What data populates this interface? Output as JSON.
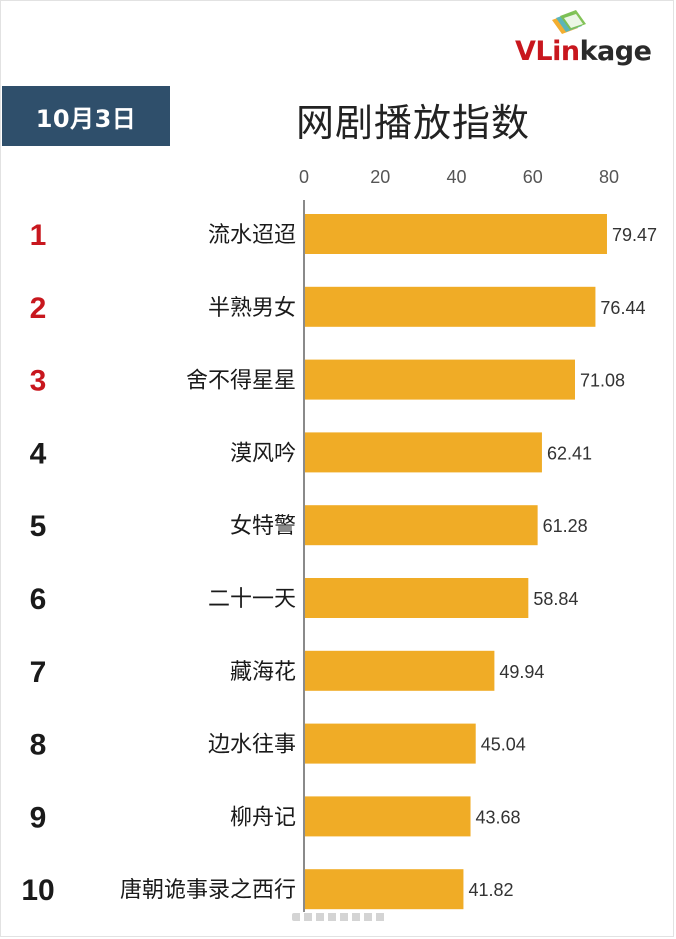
{
  "header": {
    "date": "10月3日",
    "title": "网剧播放指数"
  },
  "brand": {
    "logo_text_v": "VLin",
    "logo_text_rest": "kage",
    "logo_icon": "stacked-cards-icon"
  },
  "colors": {
    "bar": "#f0ac26",
    "date_box": "#2f4f6b",
    "top_rank": "#c8171e",
    "rank": "#1a1a1a",
    "axis": "#8a8a8a"
  },
  "chart_data": {
    "type": "bar",
    "orientation": "horizontal",
    "title": "网剧播放指数",
    "xlim": [
      0,
      80
    ],
    "ticks": [
      0,
      20,
      40,
      60,
      80
    ],
    "ranks": [
      "1",
      "2",
      "3",
      "4",
      "5",
      "6",
      "7",
      "8",
      "9",
      "10"
    ],
    "categories": [
      "流水迢迢",
      "半熟男女",
      "舍不得星星",
      "漠风吟",
      "女特警",
      "二十一天",
      "藏海花",
      "边水往事",
      "柳舟记",
      "唐朝诡事录之西行"
    ],
    "values": [
      79.47,
      76.44,
      71.08,
      62.41,
      61.28,
      58.84,
      49.94,
      45.04,
      43.68,
      41.82
    ],
    "value_labels": [
      "79.47",
      "76.44",
      "71.08",
      "62.41",
      "61.28",
      "58.84",
      "49.94",
      "45.04",
      "43.68",
      "41.82"
    ],
    "grid": false,
    "legend": "none"
  }
}
